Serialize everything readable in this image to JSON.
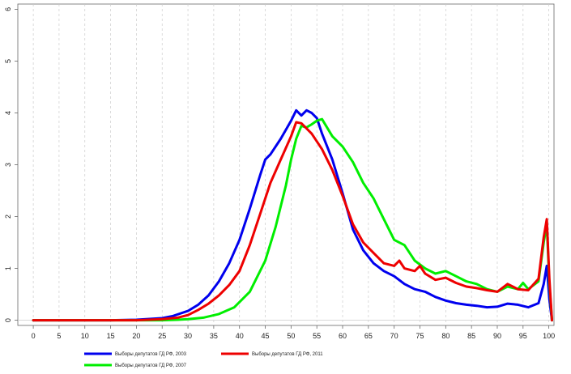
{
  "chart_data": {
    "type": "line",
    "title": "",
    "xlabel": "",
    "ylabel": "",
    "xlim": [
      -3,
      101
    ],
    "ylim": [
      -0.1,
      6.1
    ],
    "x_ticks": [
      0,
      5,
      10,
      15,
      20,
      25,
      30,
      35,
      40,
      45,
      50,
      55,
      60,
      65,
      70,
      75,
      80,
      85,
      90,
      95,
      100
    ],
    "y_ticks": [
      0,
      1,
      2,
      3,
      4,
      5,
      6
    ],
    "x_tick_labels": [
      "0",
      "5",
      "10",
      "15",
      "20",
      "25",
      "30",
      "35",
      "40",
      "45",
      "50",
      "55",
      "60",
      "65",
      "70",
      "75",
      "80",
      "85",
      "90",
      "95",
      "100"
    ],
    "y_tick_labels": [
      "0",
      "1",
      "2",
      "3",
      "4",
      "5",
      "6"
    ],
    "grid": "vertical dashed at x ticks",
    "legend_position": "bottom",
    "series": [
      {
        "name": "Выборы депутатов ГД РФ, 2003",
        "color": "#0000ee",
        "x": [
          0,
          5,
          10,
          15,
          20,
          25,
          27,
          30,
          32,
          34,
          36,
          38,
          40,
          42,
          44,
          45,
          46,
          48,
          50,
          51,
          52,
          53,
          54,
          55,
          56,
          58,
          60,
          62,
          64,
          66,
          68,
          70,
          72,
          74,
          76,
          78,
          80,
          82,
          84,
          86,
          88,
          90,
          92,
          94,
          96,
          98,
          99,
          99.6,
          100.1,
          100.6
        ],
        "y": [
          0,
          0,
          0,
          0,
          0.01,
          0.04,
          0.08,
          0.18,
          0.3,
          0.48,
          0.75,
          1.1,
          1.55,
          2.15,
          2.8,
          3.1,
          3.2,
          3.5,
          3.85,
          4.05,
          3.95,
          4.05,
          4.0,
          3.9,
          3.6,
          3.1,
          2.45,
          1.75,
          1.35,
          1.1,
          0.95,
          0.85,
          0.7,
          0.6,
          0.55,
          0.45,
          0.38,
          0.33,
          0.3,
          0.28,
          0.25,
          0.26,
          0.32,
          0.3,
          0.25,
          0.33,
          0.7,
          1.05,
          0.4,
          0.0
        ]
      },
      {
        "name": "Выборы депутатов ГД РФ, 2007",
        "color": "#00ee00",
        "x": [
          0,
          5,
          10,
          15,
          20,
          25,
          28,
          30,
          33,
          36,
          39,
          42,
          45,
          47,
          49,
          50,
          51,
          52,
          53,
          54,
          55,
          56,
          58,
          60,
          62,
          64,
          66,
          68,
          70,
          72,
          74,
          76,
          78,
          80,
          82,
          84,
          86,
          88,
          90,
          92,
          94,
          95,
          96,
          98,
          99,
          99.6,
          100.1,
          100.6
        ],
        "y": [
          0,
          0,
          0,
          0,
          0,
          0,
          0.01,
          0.02,
          0.05,
          0.12,
          0.25,
          0.55,
          1.15,
          1.8,
          2.6,
          3.1,
          3.5,
          3.75,
          3.72,
          3.78,
          3.85,
          3.88,
          3.55,
          3.35,
          3.05,
          2.65,
          2.35,
          1.95,
          1.55,
          1.45,
          1.15,
          1.0,
          0.9,
          0.95,
          0.85,
          0.75,
          0.7,
          0.6,
          0.55,
          0.65,
          0.6,
          0.72,
          0.6,
          0.75,
          1.5,
          1.85,
          0.7,
          0.0
        ]
      },
      {
        "name": "Выборы депутатов ГД РФ, 2011",
        "color": "#ee0000",
        "x": [
          0,
          5,
          10,
          15,
          20,
          25,
          28,
          30,
          32,
          34,
          36,
          38,
          40,
          42,
          44,
          46,
          48,
          50,
          51,
          52,
          53,
          54,
          56,
          58,
          60,
          62,
          64,
          66,
          68,
          70,
          71,
          72,
          74,
          75,
          76,
          78,
          80,
          82,
          84,
          86,
          88,
          90,
          92,
          94,
          96,
          98,
          99,
          99.6,
          100.1,
          100.6
        ],
        "y": [
          0,
          0,
          0,
          0,
          0,
          0.02,
          0.05,
          0.1,
          0.2,
          0.32,
          0.48,
          0.68,
          0.95,
          1.45,
          2.05,
          2.65,
          3.1,
          3.55,
          3.82,
          3.8,
          3.7,
          3.6,
          3.3,
          2.9,
          2.4,
          1.85,
          1.5,
          1.3,
          1.1,
          1.05,
          1.15,
          1.0,
          0.95,
          1.05,
          0.9,
          0.78,
          0.82,
          0.72,
          0.65,
          0.62,
          0.58,
          0.55,
          0.7,
          0.6,
          0.58,
          0.8,
          1.6,
          1.95,
          0.8,
          0.0
        ]
      }
    ]
  }
}
